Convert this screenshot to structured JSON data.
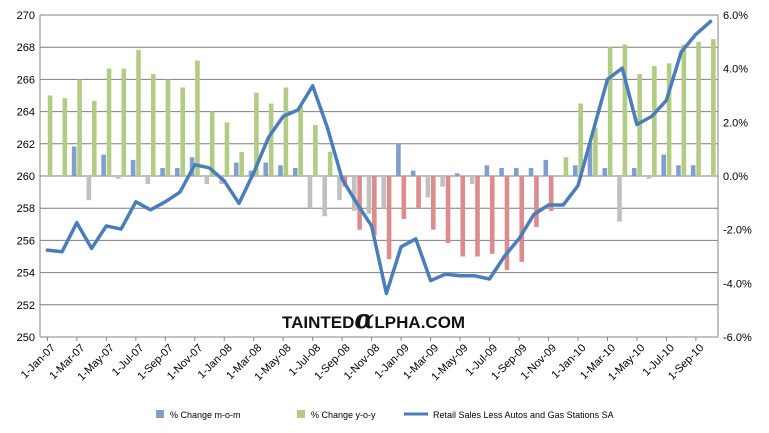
{
  "watermark": {
    "pre": "TAINTED",
    "alpha": "α",
    "post": "LPHA.COM"
  },
  "legend": {
    "mom": "% Change m-o-m",
    "yoy": "% Change y-o-y",
    "line": "Retail Sales Less Autos and Gas Stations SA"
  },
  "colors": {
    "mom_pos": "#7f9fcf",
    "yoy_pos": "#b3cc85",
    "neg_mom": "#c0c0c0",
    "neg_yoy": "#dc8c8c",
    "line": "#4a7ebb",
    "grid": "#7f7f7f"
  },
  "chart_data": {
    "type": "bar+line",
    "months": [
      "2007-01",
      "2007-02",
      "2007-03",
      "2007-04",
      "2007-05",
      "2007-06",
      "2007-07",
      "2007-08",
      "2007-09",
      "2007-10",
      "2007-11",
      "2007-12",
      "2008-01",
      "2008-02",
      "2008-03",
      "2008-04",
      "2008-05",
      "2008-06",
      "2008-07",
      "2008-08",
      "2008-09",
      "2008-10",
      "2008-11",
      "2008-12",
      "2009-01",
      "2009-02",
      "2009-03",
      "2009-04",
      "2009-05",
      "2009-06",
      "2009-07",
      "2009-08",
      "2009-09",
      "2009-10",
      "2009-11",
      "2009-12",
      "2010-01",
      "2010-02",
      "2010-03",
      "2010-04",
      "2010-05",
      "2010-06",
      "2010-07",
      "2010-08",
      "2010-09",
      "2010-10"
    ],
    "x_tick_labels": [
      "1-Jan-07",
      "1-Mar-07",
      "1-May-07",
      "1-Jul-07",
      "1-Sep-07",
      "1-Nov-07",
      "1-Jan-08",
      "1-Mar-08",
      "1-May-08",
      "1-Jul-08",
      "1-Sep-08",
      "1-Nov-08",
      "1-Jan-09",
      "1-Mar-09",
      "1-May-09",
      "1-Jul-09",
      "1-Sep-09",
      "1-Nov-09",
      "1-Jan-10",
      "1-Mar-10",
      "1-May-10",
      "1-Jul-10",
      "1-Sep-10"
    ],
    "y_left": {
      "min": 250,
      "max": 270,
      "step": 2,
      "ticks": [
        "250",
        "252",
        "254",
        "256",
        "258",
        "260",
        "262",
        "264",
        "266",
        "268",
        "270"
      ]
    },
    "y_right": {
      "min": -6,
      "max": 6,
      "step": 2,
      "ticks": [
        "-6.0%",
        "-4.0%",
        "-2.0%",
        "0.0%",
        "2.0%",
        "4.0%",
        "6.0%"
      ]
    },
    "grid": true,
    "legend_position": "bottom",
    "series": [
      {
        "name": "% Change m-o-m",
        "axis": "right",
        "kind": "bar",
        "values": [
          0.0,
          0.0,
          1.1,
          -0.9,
          0.8,
          -0.1,
          0.6,
          -0.3,
          0.3,
          0.3,
          0.7,
          -0.3,
          -0.3,
          0.5,
          0.2,
          0.5,
          0.4,
          0.3,
          -1.2,
          -1.5,
          -0.9,
          -1.3,
          -1.4,
          -1.2,
          1.2,
          0.2,
          -0.8,
          -0.4,
          0.1,
          -0.3,
          0.4,
          0.3,
          0.3,
          0.3,
          0.6,
          0.0,
          0.4,
          1.2,
          0.3,
          -1.7,
          0.3,
          -0.1,
          0.8,
          0.4,
          0.4,
          0.0
        ]
      },
      {
        "name": "% Change y-o-y",
        "axis": "right",
        "kind": "bar",
        "values": [
          3.0,
          2.9,
          3.6,
          2.8,
          4.0,
          4.0,
          4.7,
          3.8,
          3.6,
          3.3,
          4.3,
          2.4,
          2.0,
          0.9,
          3.1,
          2.7,
          3.3,
          2.6,
          1.9,
          0.9,
          -0.4,
          -2.0,
          -2.2,
          -3.1,
          -1.6,
          -1.2,
          -2.0,
          -2.5,
          -3.0,
          -3.0,
          -2.9,
          -3.5,
          -3.2,
          -1.9,
          -1.3,
          0.7,
          2.7,
          1.8,
          4.8,
          4.9,
          3.8,
          4.1,
          4.2,
          4.9,
          5.0,
          5.1
        ]
      },
      {
        "name": "Retail Sales Less Autos and Gas Stations SA",
        "axis": "left",
        "kind": "line",
        "values": [
          255.4,
          255.3,
          257.1,
          255.5,
          256.9,
          256.7,
          258.4,
          257.9,
          258.4,
          259.0,
          260.7,
          260.5,
          259.7,
          258.3,
          260.2,
          262.4,
          263.7,
          264.1,
          265.6,
          263.0,
          259.8,
          258.3,
          256.9,
          252.7,
          255.6,
          256.1,
          253.5,
          253.9,
          253.8,
          253.8,
          253.6,
          255.0,
          256.1,
          257.6,
          258.2,
          258.2,
          259.4,
          262.7,
          266.0,
          266.7,
          263.2,
          263.7,
          264.7,
          267.7,
          268.8,
          269.6
        ]
      }
    ]
  }
}
